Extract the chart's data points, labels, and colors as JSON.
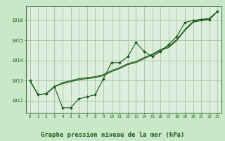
{
  "background_color": "#c8e8c8",
  "plot_bg_color": "#ddeedd",
  "grid_color": "#99bb99",
  "line_color": "#1a5c1a",
  "title": "Graphe pression niveau de la mer (hPa)",
  "title_fontsize": 6.5,
  "xlabel_ticks": [
    0,
    1,
    2,
    3,
    4,
    5,
    6,
    7,
    8,
    9,
    10,
    11,
    12,
    13,
    14,
    15,
    16,
    17,
    18,
    19,
    20,
    21,
    22,
    23
  ],
  "ylim": [
    1011.4,
    1016.7
  ],
  "yticks": [
    1012,
    1013,
    1014,
    1015,
    1016
  ],
  "series": {
    "main": [
      1013.0,
      1012.3,
      1012.35,
      1012.7,
      1011.65,
      1011.65,
      1012.1,
      1012.2,
      1012.3,
      1013.1,
      1013.9,
      1013.9,
      1014.2,
      1014.9,
      1014.45,
      1014.2,
      1014.45,
      1014.8,
      1015.2,
      1015.9,
      1016.0,
      1016.05,
      1016.05,
      1016.45
    ],
    "line2": [
      1013.0,
      1012.3,
      1012.35,
      1012.7,
      1012.85,
      1012.95,
      1013.05,
      1013.1,
      1013.15,
      1013.25,
      1013.45,
      1013.6,
      1013.8,
      1013.9,
      1014.1,
      1014.28,
      1014.5,
      1014.65,
      1015.0,
      1015.5,
      1015.9,
      1016.0,
      1016.05,
      1016.45
    ],
    "line3": [
      1013.0,
      1012.3,
      1012.35,
      1012.7,
      1012.9,
      1013.0,
      1013.1,
      1013.15,
      1013.2,
      1013.3,
      1013.5,
      1013.65,
      1013.85,
      1013.95,
      1014.15,
      1014.32,
      1014.55,
      1014.7,
      1015.05,
      1015.55,
      1015.95,
      1016.05,
      1016.1,
      1016.45
    ]
  }
}
